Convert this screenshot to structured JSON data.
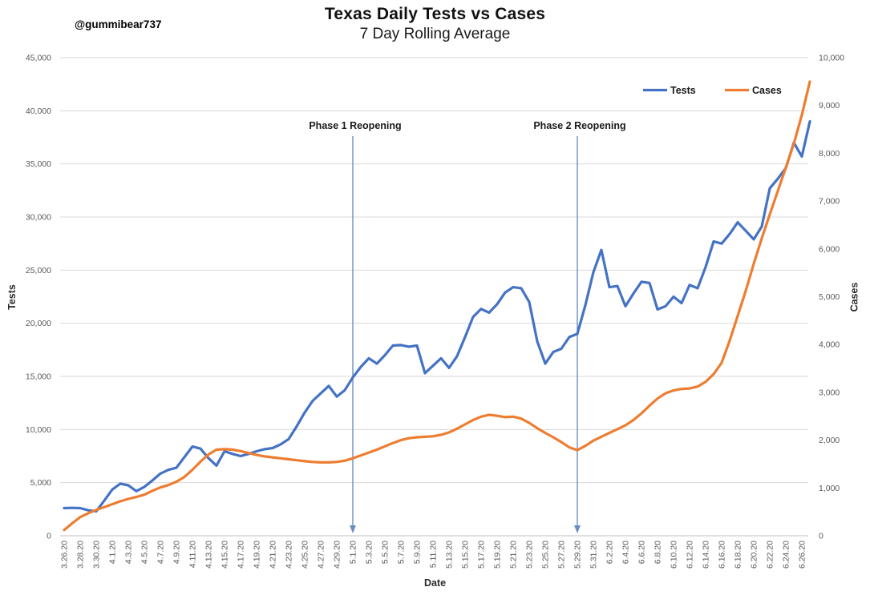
{
  "header": {
    "title": "Texas Daily Tests vs Cases",
    "subtitle": "7 Day Rolling Average",
    "watermark": "@gummibear737"
  },
  "axes": {
    "left_title": "Tests",
    "right_title": "Cases",
    "x_title": "Date",
    "left_tick_labels": [
      "0",
      "5,000",
      "10,000",
      "15,000",
      "20,000",
      "25,000",
      "30,000",
      "35,000",
      "40,000",
      "45,000"
    ],
    "right_tick_labels": [
      "0",
      "1,000",
      "2,000",
      "3,000",
      "4,000",
      "5,000",
      "6,000",
      "7,000",
      "8,000",
      "9,000",
      "10,000"
    ]
  },
  "colors": {
    "tests_line": "#4472C4",
    "cases_line": "#ED7D31",
    "annotation_line": "#6C8EBF",
    "gridline": "#D9D9D9",
    "axis_line": "#BFBFBF",
    "tick_text": "#595959"
  },
  "chart_data": {
    "type": "line",
    "title": "Texas Daily Tests vs Cases",
    "subtitle": "7 Day Rolling Average",
    "xlabel": "Date",
    "ylabel_left": "Tests",
    "ylabel_right": "Cases",
    "left_ylim": [
      0,
      45000
    ],
    "right_ylim": [
      0,
      10000
    ],
    "grid": "horizontal",
    "legend_position": "top-right",
    "x_tick_every": 2,
    "x": [
      "3.26.20",
      "3.27.20",
      "3.28.20",
      "3.29.20",
      "3.30.20",
      "3.31.20",
      "4.1.20",
      "4.2.20",
      "4.3.20",
      "4.4.20",
      "4.5.20",
      "4.6.20",
      "4.7.20",
      "4.8.20",
      "4.9.20",
      "4.10.20",
      "4.11.20",
      "4.12.20",
      "4.13.20",
      "4.14.20",
      "4.15.20",
      "4.16.20",
      "4.17.20",
      "4.18.20",
      "4.19.20",
      "4.20.20",
      "4.21.20",
      "4.22.20",
      "4.23.20",
      "4.24.20",
      "4.25.20",
      "4.26.20",
      "4.27.20",
      "4.28.20",
      "4.29.20",
      "4.30.20",
      "5.1.20",
      "5.2.20",
      "5.3.20",
      "5.4.20",
      "5.5.20",
      "5.6.20",
      "5.7.20",
      "5.8.20",
      "5.9.20",
      "5.10.20",
      "5.11.20",
      "5.12.20",
      "5.13.20",
      "5.14.20",
      "5.15.20",
      "5.16.20",
      "5.17.20",
      "5.18.20",
      "5.19.20",
      "5.20.20",
      "5.21.20",
      "5.22.20",
      "5.23.20",
      "5.24.20",
      "5.25.20",
      "5.26.20",
      "5.27.20",
      "5.28.20",
      "5.29.20",
      "5.30.20",
      "5.31.20",
      "6.1.20",
      "6.2.20",
      "6.3.20",
      "6.4.20",
      "6.5.20",
      "6.6.20",
      "6.7.20",
      "6.8.20",
      "6.9.20",
      "6.10.20",
      "6.11.20",
      "6.12.20",
      "6.13.20",
      "6.14.20",
      "6.15.20",
      "6.16.20",
      "6.17.20",
      "6.18.20",
      "6.19.20",
      "6.20.20",
      "6.21.20",
      "6.22.20",
      "6.23.20",
      "6.24.20",
      "6.25.20",
      "6.26.20",
      "6.27.20"
    ],
    "series": [
      {
        "name": "Tests",
        "axis": "left",
        "color": "#4472C4",
        "values": [
          2600,
          2620,
          2600,
          2400,
          2300,
          3300,
          4350,
          4900,
          4750,
          4200,
          4600,
          5200,
          5850,
          6200,
          6400,
          7400,
          8400,
          8200,
          7300,
          6600,
          7950,
          7700,
          7500,
          7700,
          7950,
          8150,
          8250,
          8600,
          9100,
          10300,
          11600,
          12700,
          13400,
          14100,
          13100,
          13700,
          14900,
          15900,
          16700,
          16200,
          17000,
          17900,
          17950,
          17800,
          17900,
          15300,
          16000,
          16700,
          15800,
          16900,
          18700,
          20600,
          21350,
          21000,
          21800,
          22900,
          23400,
          23300,
          22000,
          18300,
          16200,
          17300,
          17600,
          18700,
          19000,
          21700,
          24800,
          26900,
          23400,
          23500,
          21600,
          22800,
          23900,
          23800,
          21300,
          21600,
          22500,
          21900,
          23600,
          23300,
          25300,
          27700,
          27500,
          28400,
          29500,
          28700,
          27900,
          29100,
          32700,
          33600,
          34600,
          37000,
          35700,
          39000
        ]
      },
      {
        "name": "Cases",
        "axis": "right",
        "color": "#ED7D31",
        "values": [
          120,
          260,
          390,
          470,
          540,
          600,
          660,
          720,
          770,
          810,
          860,
          940,
          1010,
          1060,
          1130,
          1230,
          1380,
          1550,
          1700,
          1800,
          1810,
          1800,
          1770,
          1730,
          1690,
          1660,
          1640,
          1620,
          1600,
          1580,
          1560,
          1545,
          1535,
          1535,
          1545,
          1570,
          1620,
          1680,
          1740,
          1800,
          1870,
          1940,
          2000,
          2040,
          2060,
          2070,
          2080,
          2110,
          2160,
          2240,
          2330,
          2420,
          2490,
          2530,
          2510,
          2480,
          2490,
          2450,
          2360,
          2250,
          2150,
          2060,
          1960,
          1850,
          1790,
          1880,
          1990,
          2070,
          2150,
          2230,
          2310,
          2420,
          2560,
          2720,
          2870,
          2980,
          3040,
          3070,
          3080,
          3120,
          3220,
          3380,
          3620,
          4080,
          4600,
          5120,
          5690,
          6220,
          6720,
          7210,
          7700,
          8200,
          8800,
          9500
        ]
      }
    ],
    "annotations": [
      {
        "label": "Phase 1 Reopening",
        "x": "5.1.20"
      },
      {
        "label": "Phase 2 Reopening",
        "x": "5.29.20"
      }
    ]
  }
}
